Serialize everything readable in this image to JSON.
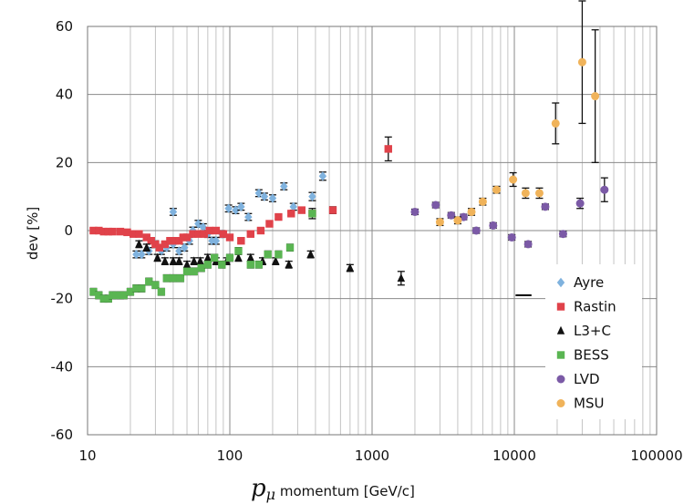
{
  "chart_data": {
    "type": "scatter",
    "title": "",
    "xscale": "log",
    "xlim": [
      10,
      100000
    ],
    "ylim": [
      -60,
      60
    ],
    "xlabel": {
      "symbol": "p",
      "subscript": "μ",
      "text": " momentum [GeV/c]"
    },
    "ylabel": "dev [%]",
    "xticks": [
      10,
      100,
      1000,
      10000,
      100000
    ],
    "xtick_labels": [
      "10",
      "100",
      "1000",
      "10000",
      "100000"
    ],
    "yticks": [
      -60,
      -40,
      -20,
      0,
      20,
      40,
      60
    ],
    "ytick_labels": [
      "-60",
      "-40",
      "-20",
      "0",
      "20",
      "40",
      "60"
    ],
    "grid": true,
    "legend_position": "lower-right",
    "series": [
      {
        "name": "Ayre",
        "marker": "diamond",
        "color": "#7fb2de",
        "points": [
          [
            22,
            -7
          ],
          [
            24,
            -7
          ],
          [
            27,
            -6
          ],
          [
            30,
            -4
          ],
          [
            33,
            -6
          ],
          [
            36,
            -5
          ],
          [
            40,
            -4
          ],
          [
            40,
            5.5
          ],
          [
            44,
            -6
          ],
          [
            48,
            -5
          ],
          [
            52,
            -3
          ],
          [
            55,
            0
          ],
          [
            60,
            2
          ],
          [
            65,
            1
          ],
          [
            70,
            -1
          ],
          [
            75,
            -3
          ],
          [
            80,
            -3
          ],
          [
            88,
            -1
          ],
          [
            98,
            6.5
          ],
          [
            110,
            6
          ],
          [
            120,
            7
          ],
          [
            135,
            4
          ],
          [
            160,
            11
          ],
          [
            175,
            10
          ],
          [
            200,
            9.5
          ],
          [
            240,
            13
          ],
          [
            280,
            7
          ],
          [
            380,
            10
          ],
          [
            450,
            16
          ]
        ],
        "errors": [
          1,
          1,
          1,
          1,
          1,
          1,
          1,
          1,
          1,
          1,
          1,
          1,
          1,
          1,
          1,
          1,
          1,
          1,
          1,
          1,
          1,
          1,
          1,
          1,
          1,
          1,
          1,
          1.2,
          1.2
        ]
      },
      {
        "name": "Rastin",
        "marker": "square",
        "color": "#e0424a",
        "points": [
          [
            11,
            0
          ],
          [
            12,
            0
          ],
          [
            13,
            -0.3
          ],
          [
            14,
            -0.3
          ],
          [
            15,
            -0.3
          ],
          [
            17,
            -0.3
          ],
          [
            19,
            -0.5
          ],
          [
            21,
            -1
          ],
          [
            23,
            -1
          ],
          [
            26,
            -2
          ],
          [
            28,
            -3
          ],
          [
            30,
            -4
          ],
          [
            32,
            -5
          ],
          [
            35,
            -4
          ],
          [
            38,
            -3
          ],
          [
            41,
            -3
          ],
          [
            44,
            -3
          ],
          [
            47,
            -2
          ],
          [
            50,
            -2
          ],
          [
            55,
            -1
          ],
          [
            60,
            -1
          ],
          [
            66,
            -1
          ],
          [
            72,
            0
          ],
          [
            80,
            0
          ],
          [
            90,
            -1
          ],
          [
            100,
            -2
          ],
          [
            120,
            -3
          ],
          [
            140,
            -1
          ],
          [
            165,
            0
          ],
          [
            190,
            2
          ],
          [
            220,
            4
          ],
          [
            270,
            5
          ],
          [
            320,
            6
          ],
          [
            380,
            5
          ],
          [
            530,
            6
          ],
          [
            1300,
            24
          ]
        ],
        "errors": [
          0.6,
          0.6,
          0.6,
          0.6,
          0.6,
          0.6,
          0.6,
          0.6,
          0.6,
          0.6,
          0.6,
          0.6,
          0.6,
          0.6,
          0.6,
          0.6,
          0.6,
          0.6,
          0.6,
          0.6,
          0.6,
          0.6,
          0.6,
          0.6,
          0.6,
          0.6,
          0.6,
          0.6,
          0.6,
          0.6,
          0.6,
          0.6,
          0.6,
          0.6,
          1,
          3.5
        ]
      },
      {
        "name": "L3+C",
        "marker": "triangle",
        "color": "#111111",
        "points": [
          [
            23,
            -4
          ],
          [
            26,
            -5
          ],
          [
            31,
            -8
          ],
          [
            35,
            -9
          ],
          [
            40,
            -9
          ],
          [
            44,
            -9
          ],
          [
            50,
            -10
          ],
          [
            56,
            -9
          ],
          [
            62,
            -9
          ],
          [
            70,
            -8
          ],
          [
            80,
            -9
          ],
          [
            95,
            -9
          ],
          [
            115,
            -8
          ],
          [
            140,
            -8
          ],
          [
            170,
            -9
          ],
          [
            210,
            -9
          ],
          [
            260,
            -10
          ],
          [
            370,
            -7
          ],
          [
            700,
            -11
          ],
          [
            1600,
            -14
          ]
        ],
        "errors": [
          1,
          1,
          1,
          1,
          1,
          1,
          1,
          1,
          1,
          1,
          1,
          1,
          1,
          1,
          1,
          1,
          1,
          1,
          1,
          2
        ]
      },
      {
        "name": "BESS",
        "marker": "square",
        "color": "#5ab552",
        "points": [
          [
            11,
            -18
          ],
          [
            12,
            -19
          ],
          [
            13,
            -20
          ],
          [
            14,
            -20
          ],
          [
            15,
            -19
          ],
          [
            16,
            -19
          ],
          [
            17,
            -19
          ],
          [
            18,
            -19
          ],
          [
            20,
            -18
          ],
          [
            22,
            -17
          ],
          [
            24,
            -17
          ],
          [
            27,
            -15
          ],
          [
            30,
            -16
          ],
          [
            33,
            -18
          ],
          [
            36,
            -14
          ],
          [
            40,
            -14
          ],
          [
            45,
            -14
          ],
          [
            50,
            -12
          ],
          [
            56,
            -12
          ],
          [
            63,
            -11
          ],
          [
            70,
            -10
          ],
          [
            78,
            -8
          ],
          [
            88,
            -10
          ],
          [
            100,
            -8
          ],
          [
            115,
            -6
          ],
          [
            140,
            -10
          ],
          [
            160,
            -10
          ],
          [
            185,
            -7
          ],
          [
            220,
            -7
          ],
          [
            265,
            -5
          ],
          [
            380,
            5
          ]
        ],
        "errors": [
          1,
          1,
          1,
          1,
          1,
          1,
          1,
          1,
          1,
          1,
          1,
          1,
          1,
          1,
          1,
          1,
          1,
          1,
          1,
          1,
          1,
          1,
          1,
          1,
          1,
          1,
          1,
          1,
          1,
          1,
          1.5
        ]
      },
      {
        "name": "LVD",
        "marker": "circle",
        "color": "#7b5aa6",
        "points": [
          [
            2000,
            5.5
          ],
          [
            2800,
            7.5
          ],
          [
            3600,
            4.5
          ],
          [
            4400,
            4
          ],
          [
            5400,
            0
          ],
          [
            7100,
            1.5
          ],
          [
            9600,
            -2
          ],
          [
            12500,
            -4
          ],
          [
            16500,
            7
          ],
          [
            22000,
            -1
          ],
          [
            29000,
            8
          ],
          [
            43000,
            12
          ]
        ],
        "errors": [
          0.8,
          0.8,
          0.8,
          0.8,
          0.8,
          0.8,
          0.8,
          0.8,
          0.8,
          0.8,
          1.5,
          3.5
        ]
      },
      {
        "name": "MSU",
        "marker": "circle",
        "color": "#f0b35a",
        "points": [
          [
            3000,
            2.5
          ],
          [
            4000,
            3
          ],
          [
            5000,
            5.5
          ],
          [
            6000,
            8.5
          ],
          [
            7500,
            12
          ],
          [
            9800,
            15
          ],
          [
            12000,
            11
          ],
          [
            15000,
            11
          ],
          [
            19500,
            31.5
          ],
          [
            30000,
            49.5
          ],
          [
            37000,
            39.5
          ]
        ],
        "errors": [
          1,
          1,
          1,
          1,
          1,
          2,
          1.5,
          1.5,
          6,
          18,
          19.5
        ]
      }
    ],
    "annotations": [
      {
        "type": "hline-segment",
        "x": [
          10200,
          13200
        ],
        "y": -19,
        "color": "#111111"
      }
    ]
  }
}
